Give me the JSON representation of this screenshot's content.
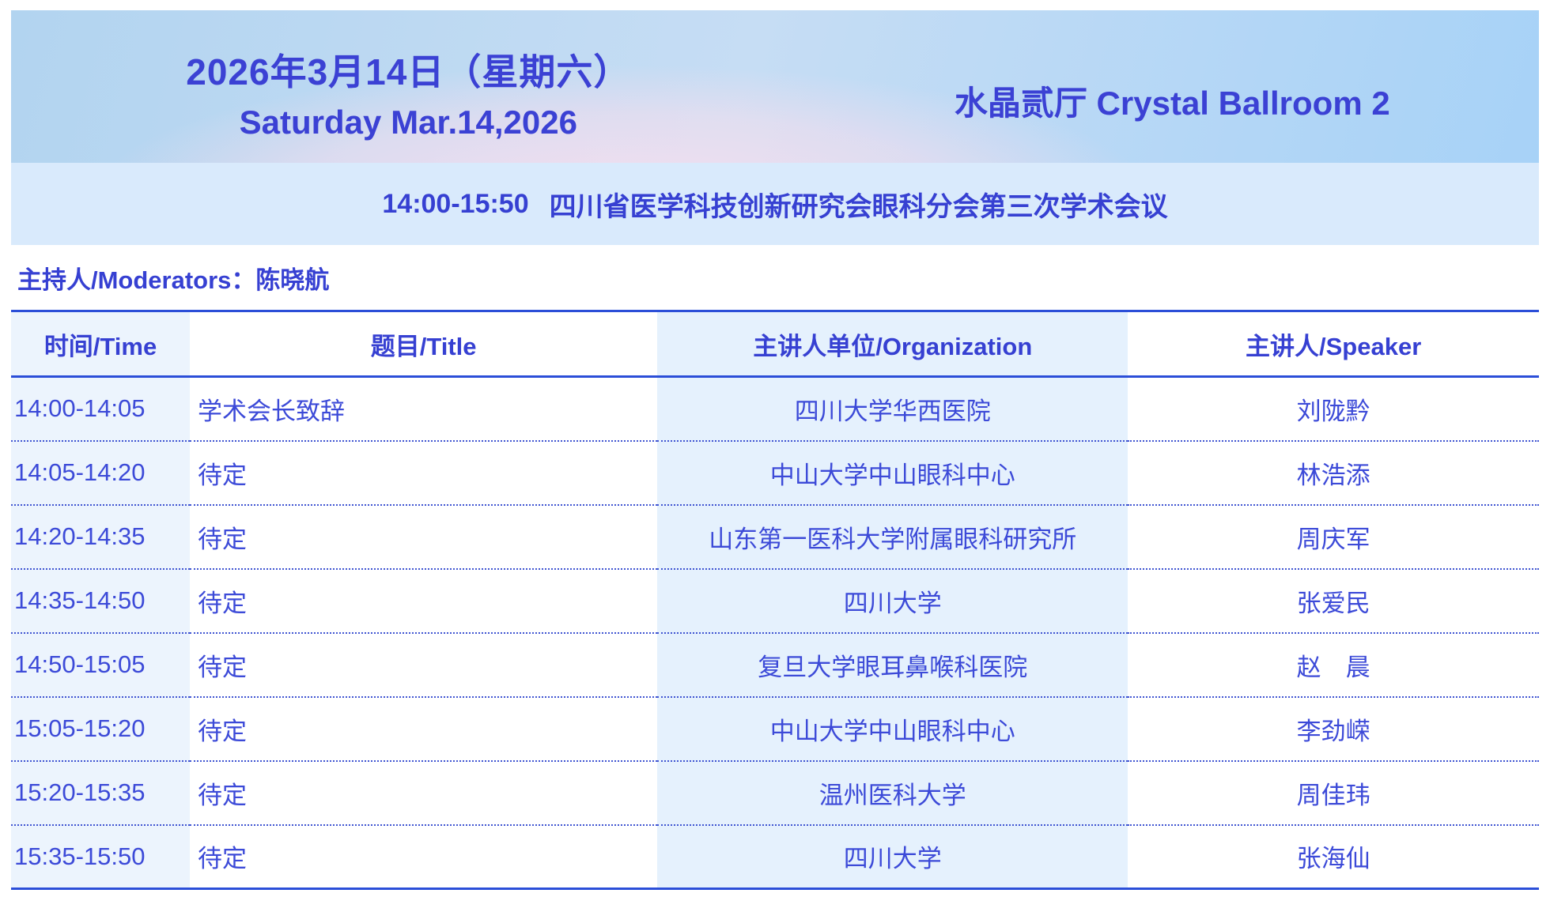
{
  "header": {
    "date_zh": "2026年3月14日（星期六）",
    "date_en": "Saturday Mar.14,2026",
    "room": "水晶贰厅 Crystal Ballroom 2"
  },
  "session": {
    "time": "14:00-15:50",
    "title": "四川省医学科技创新研究会眼科分会第三次学术会议"
  },
  "moderators": {
    "label": "主持人/Moderators：",
    "names": "陈晓航"
  },
  "table": {
    "columns": [
      "时间/Time",
      "题目/Title",
      "主讲人单位/Organization",
      "主讲人/Speaker"
    ],
    "rows": [
      {
        "time": "14:00-14:05",
        "title": "学术会长致辞",
        "organization": "四川大学华西医院",
        "speaker": "刘陇黔"
      },
      {
        "time": "14:05-14:20",
        "title": "待定",
        "organization": "中山大学中山眼科中心",
        "speaker": "林浩添"
      },
      {
        "time": "14:20-14:35",
        "title": "待定",
        "organization": "山东第一医科大学附属眼科研究所",
        "speaker": "周庆军"
      },
      {
        "time": "14:35-14:50",
        "title": "待定",
        "organization": "四川大学",
        "speaker": "张爱民"
      },
      {
        "time": "14:50-15:05",
        "title": "待定",
        "organization": "复旦大学眼耳鼻喉科医院",
        "speaker": "赵　晨"
      },
      {
        "time": "15:05-15:20",
        "title": "待定",
        "organization": "中山大学中山眼科中心",
        "speaker": "李劲嵘"
      },
      {
        "time": "15:20-15:35",
        "title": "待定",
        "organization": "温州医科大学",
        "speaker": "周佳玮"
      },
      {
        "time": "15:35-15:50",
        "title": "待定",
        "organization": "四川大学",
        "speaker": "张海仙"
      }
    ]
  },
  "colors": {
    "text_blue": "#3c4ad8",
    "header_text_blue": "#3b41d4",
    "session_bar_bg": "#d9eafc",
    "col_time_bg": "#ecf4fd",
    "col_org_bg": "#e5f1fd",
    "rule_solid": "#2b4ed8",
    "rule_dotted": "#4156d2",
    "header_gradient_blue_left": "#b2d4f0",
    "header_gradient_blue_right": "#a7d2f7",
    "header_gradient_pink": "#f6deee"
  }
}
